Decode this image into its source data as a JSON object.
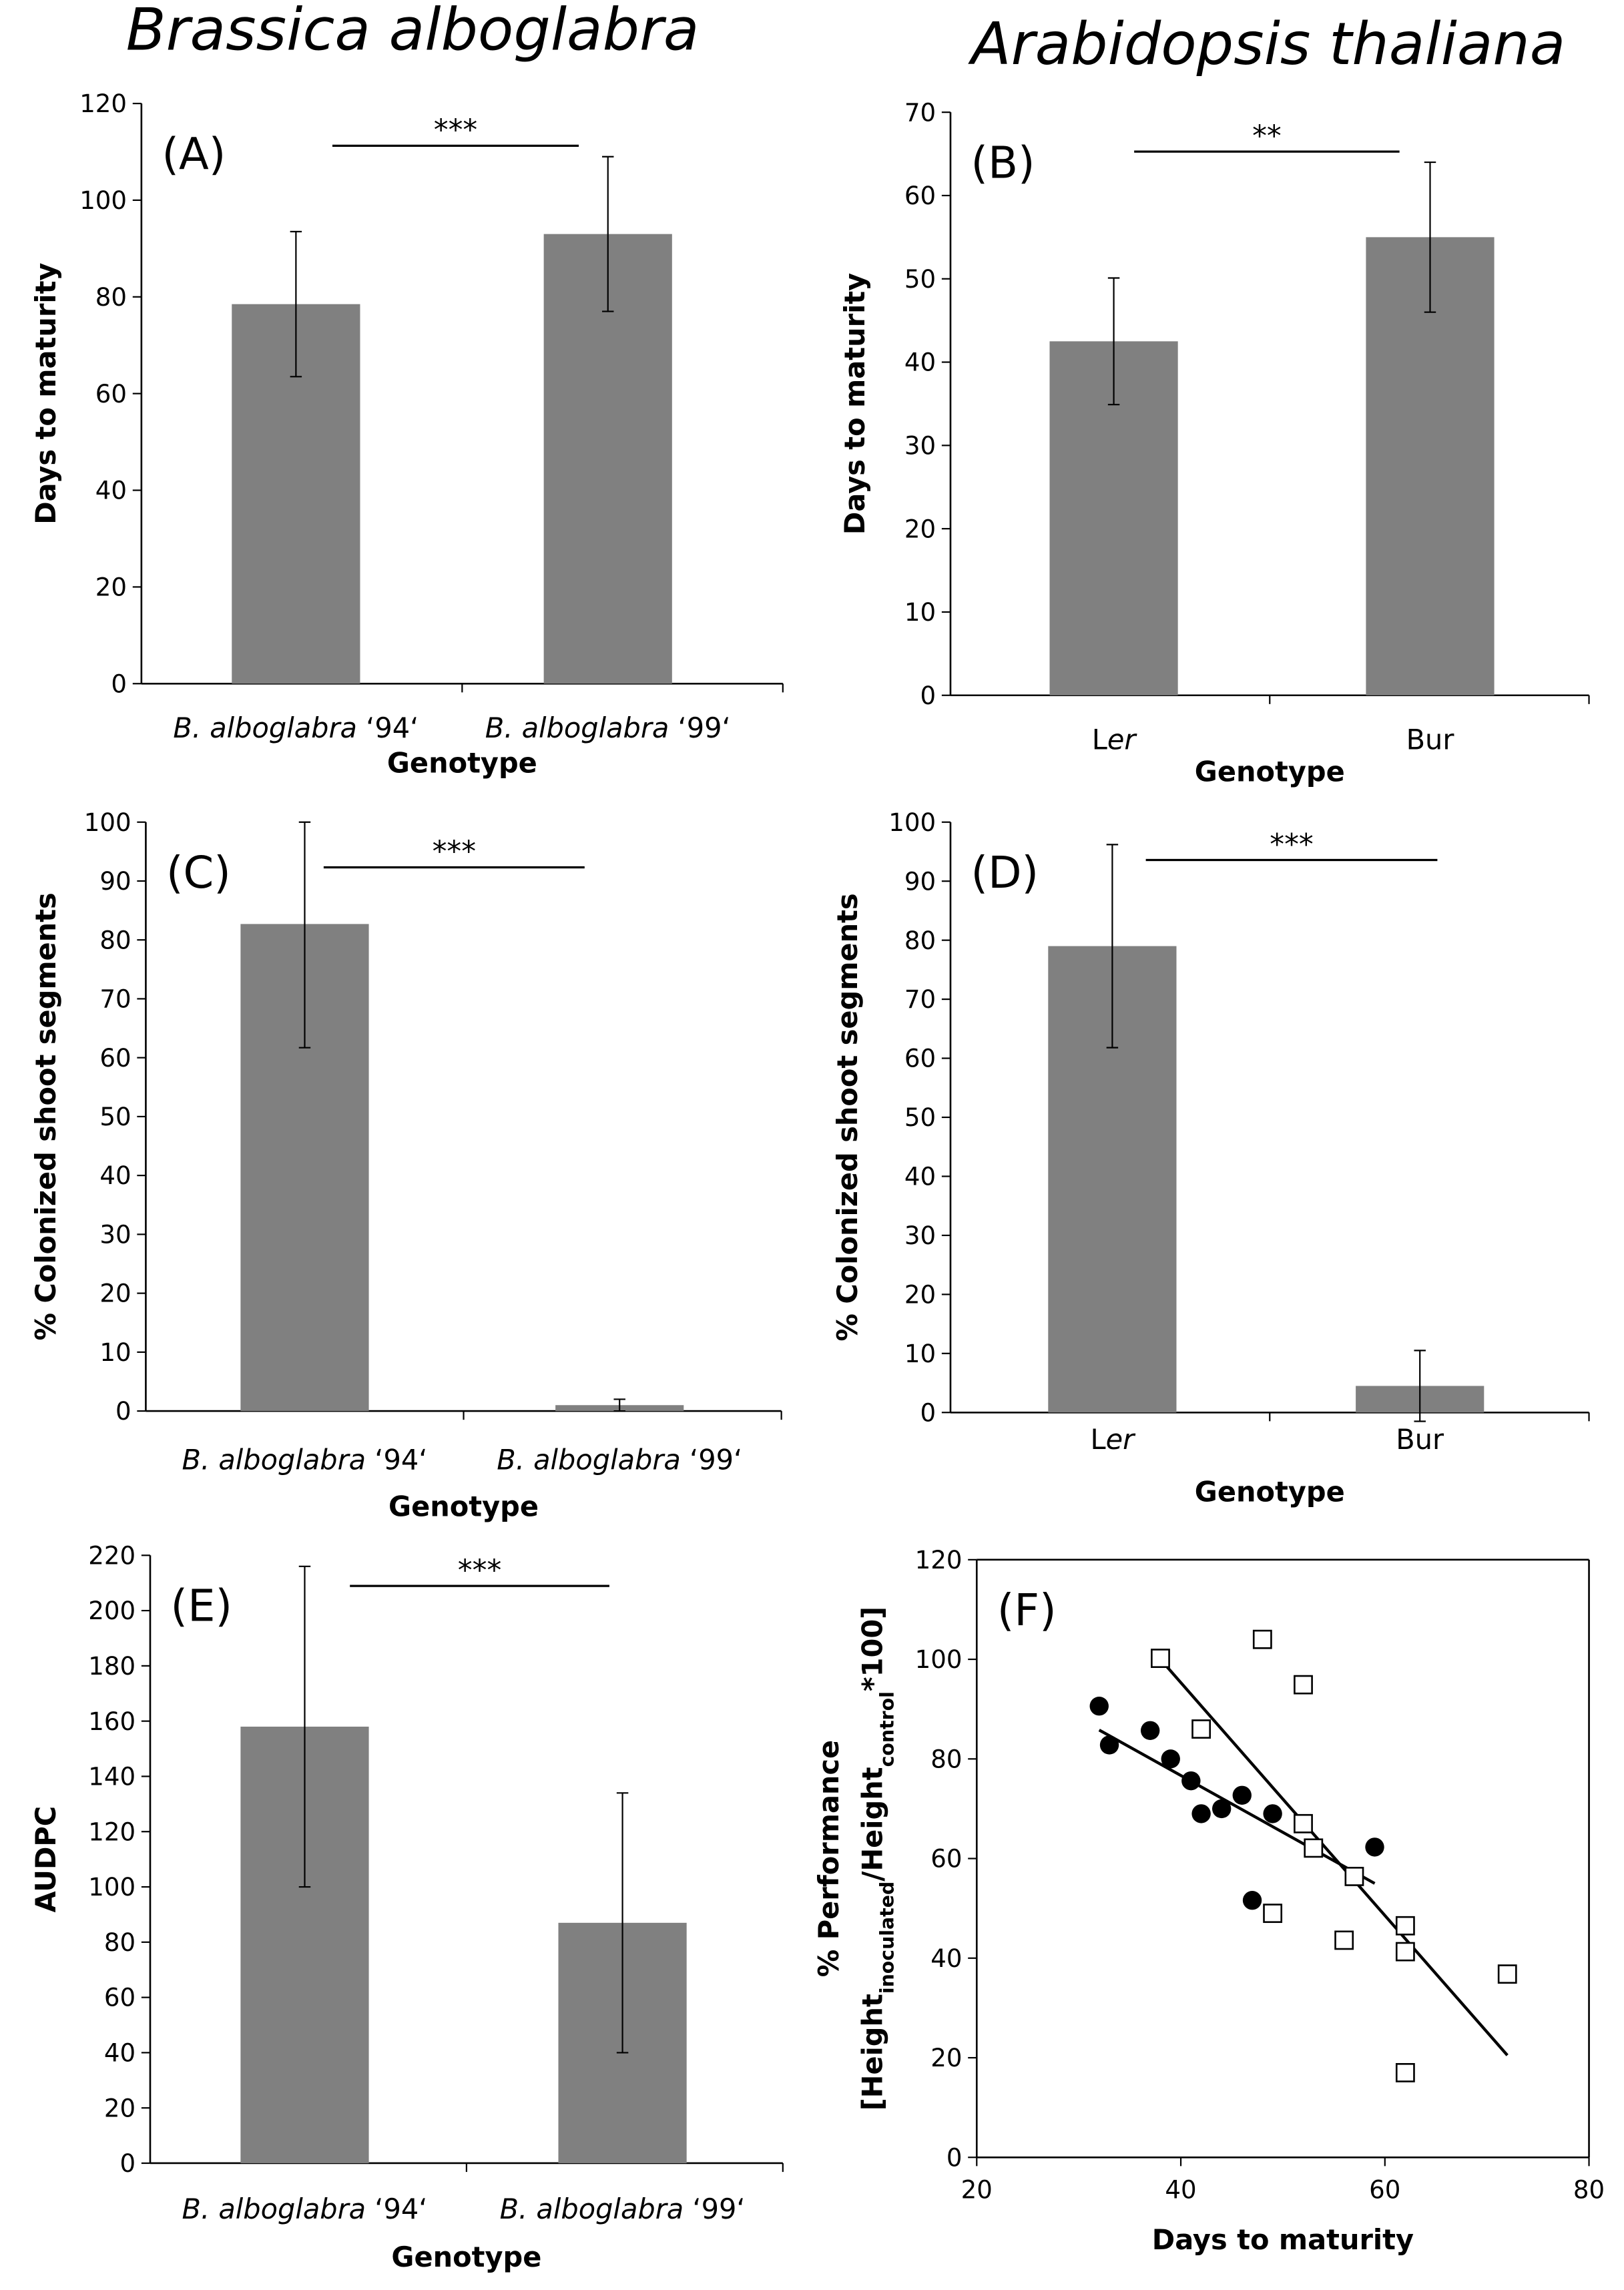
{
  "titles": {
    "left": "Brassica alboglabra",
    "right": "Arabidopsis thaliana"
  },
  "colors": {
    "bar": "#808080",
    "line": "#000000"
  },
  "chart_data": [
    {
      "id": "A",
      "type": "bar",
      "panel_label": "(A)",
      "significance": "***",
      "ylim": [
        0,
        120
      ],
      "yticks": [
        0,
        20,
        40,
        60,
        80,
        100,
        120
      ],
      "ylabel": [
        {
          "t": "Days to maturity"
        }
      ],
      "xlabel": "Genotype",
      "categories": [
        [
          {
            "t": "B. alboglabra",
            "i": true
          },
          {
            "t": " ‘94‘"
          }
        ],
        [
          {
            "t": "B. alboglabra",
            "i": true
          },
          {
            "t": " ‘99‘"
          }
        ]
      ],
      "values": [
        78.5,
        93
      ],
      "errors": [
        15,
        16
      ]
    },
    {
      "id": "B",
      "type": "bar",
      "panel_label": "(B)",
      "significance": "**",
      "ylim": [
        0,
        70
      ],
      "yticks": [
        0,
        10,
        20,
        30,
        40,
        50,
        60,
        70
      ],
      "ylabel": [
        {
          "t": "Days to maturity"
        }
      ],
      "xlabel": "Genotype",
      "categories": [
        [
          {
            "t": "L"
          },
          {
            "t": "er",
            "i": true
          }
        ],
        [
          {
            "t": "Bur"
          }
        ]
      ],
      "values": [
        42.5,
        55
      ],
      "errors": [
        7.6,
        9
      ]
    },
    {
      "id": "C",
      "type": "bar",
      "panel_label": "(C)",
      "significance": "***",
      "ylim": [
        0,
        100
      ],
      "yticks": [
        0,
        10,
        20,
        30,
        40,
        50,
        60,
        70,
        80,
        90,
        100
      ],
      "ylabel": [
        {
          "t": "% Colonized shoot segments"
        }
      ],
      "xlabel": "Genotype",
      "categories": [
        [
          {
            "t": "B. alboglabra",
            "i": true
          },
          {
            "t": " ‘94‘"
          }
        ],
        [
          {
            "t": "B. alboglabra",
            "i": true
          },
          {
            "t": " ‘99‘"
          }
        ]
      ],
      "values": [
        82.7,
        1
      ],
      "errors": [
        21,
        1
      ]
    },
    {
      "id": "D",
      "type": "bar",
      "panel_label": "(D)",
      "significance": "***",
      "ylim": [
        0,
        100
      ],
      "yticks": [
        0,
        10,
        20,
        30,
        40,
        50,
        60,
        70,
        80,
        90,
        100
      ],
      "ylabel": [
        {
          "t": "% Colonized shoot segments"
        }
      ],
      "xlabel": "Genotype",
      "categories": [
        [
          {
            "t": "L"
          },
          {
            "t": "er",
            "i": true
          }
        ],
        [
          {
            "t": "Bur"
          }
        ]
      ],
      "values": [
        79,
        4.5
      ],
      "errors": [
        17.2,
        6
      ]
    },
    {
      "id": "E",
      "type": "bar",
      "panel_label": "(E)",
      "significance": "***",
      "ylim": [
        0,
        220
      ],
      "yticks": [
        0,
        20,
        40,
        60,
        80,
        100,
        120,
        140,
        160,
        180,
        200,
        220
      ],
      "ylabel": [
        {
          "t": "AUDPC"
        }
      ],
      "xlabel": "Genotype",
      "categories": [
        [
          {
            "t": "B. alboglabra",
            "i": true
          },
          {
            "t": " ‘94‘"
          }
        ],
        [
          {
            "t": "B. alboglabra",
            "i": true
          },
          {
            "t": " ‘99‘"
          }
        ]
      ],
      "values": [
        158,
        87
      ],
      "errors": [
        58,
        47
      ]
    },
    {
      "id": "F",
      "type": "scatter",
      "panel_label": "(F)",
      "xlim": [
        20,
        80
      ],
      "ylim": [
        0,
        120
      ],
      "xticks": [
        20,
        40,
        60,
        80
      ],
      "yticks": [
        0,
        20,
        40,
        60,
        80,
        100,
        120
      ],
      "xlabel": "Days to maturity",
      "ylabel": [
        {
          "t": "% Performance"
        }
      ],
      "ylabel2": [
        {
          "t": "[Height"
        },
        {
          "t": "inoculated",
          "sub": true
        },
        {
          "t": "/Height"
        },
        {
          "t": "control",
          "sub": true
        },
        {
          "t": "*100]"
        }
      ],
      "series": [
        {
          "name": "filled circles",
          "marker": "circle",
          "x": [
            32,
            33,
            37,
            39,
            41,
            42,
            44,
            46,
            49,
            47,
            59
          ],
          "y": [
            90.6,
            82.8,
            85.7,
            80,
            75.6,
            69,
            70,
            72.7,
            69,
            51.6,
            62.3
          ],
          "fit": [
            [
              32,
              85.8
            ],
            [
              59,
              55
            ]
          ]
        },
        {
          "name": "open squares",
          "marker": "square",
          "x": [
            38,
            48,
            52,
            42,
            52,
            53,
            57,
            49,
            56,
            62,
            62,
            72,
            62
          ],
          "y": [
            100.2,
            104,
            94.9,
            86,
            67,
            62.1,
            56.4,
            49,
            43.6,
            46.5,
            41.3,
            36.8,
            17
          ],
          "fit": [
            [
              38,
              100
            ],
            [
              72,
              20.5
            ]
          ]
        }
      ]
    }
  ]
}
